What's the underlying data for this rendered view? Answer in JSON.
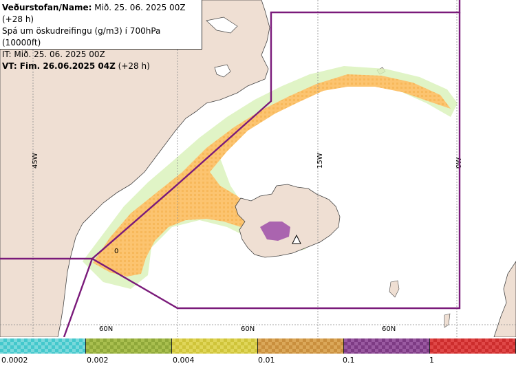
{
  "header": {
    "line1_bold": "Veðurstofan/Name:",
    "line1_rest": " Mið. 25. 06. 2025 00Z (+28 h)",
    "line2": "Spá um öskudreifingu (g/m3) í 700hPa (10000ft)",
    "line3": "IT: Mið. 25. 06. 2025 00Z",
    "line4_bold": "VT: Fim. 26.06.2025 04Z",
    "line4_rest": " (+28 h)"
  },
  "map": {
    "meridians": [
      "45W",
      "15W",
      "0W"
    ],
    "parallels": [
      "60N",
      "60N",
      "60N"
    ],
    "marker": "0",
    "colors": {
      "ocean": "#ffffff",
      "land": "#efdfd3",
      "boundary": "#7a1a7a",
      "grid": "#8a8a8a",
      "ash_low": "#fcc470",
      "ash_med": "#f3a83c",
      "ash_high": "#a050a8",
      "ash_trace": "#c9e9a0"
    }
  },
  "legend": {
    "bins": [
      {
        "color": "#44c8cc",
        "alt": "#7ad9dc"
      },
      {
        "color": "#8fa83a",
        "alt": "#a9bf4f"
      },
      {
        "color": "#cfc43a",
        "alt": "#e0d65a"
      },
      {
        "color": "#c98f3e",
        "alt": "#dba85a"
      },
      {
        "color": "#7d3b84",
        "alt": "#9a5aa1"
      },
      {
        "color": "#cc2d2d",
        "alt": "#e04848"
      }
    ],
    "ticks": [
      "0.0002",
      "0.002",
      "0.004",
      "0.01",
      "0.1",
      "1"
    ]
  }
}
